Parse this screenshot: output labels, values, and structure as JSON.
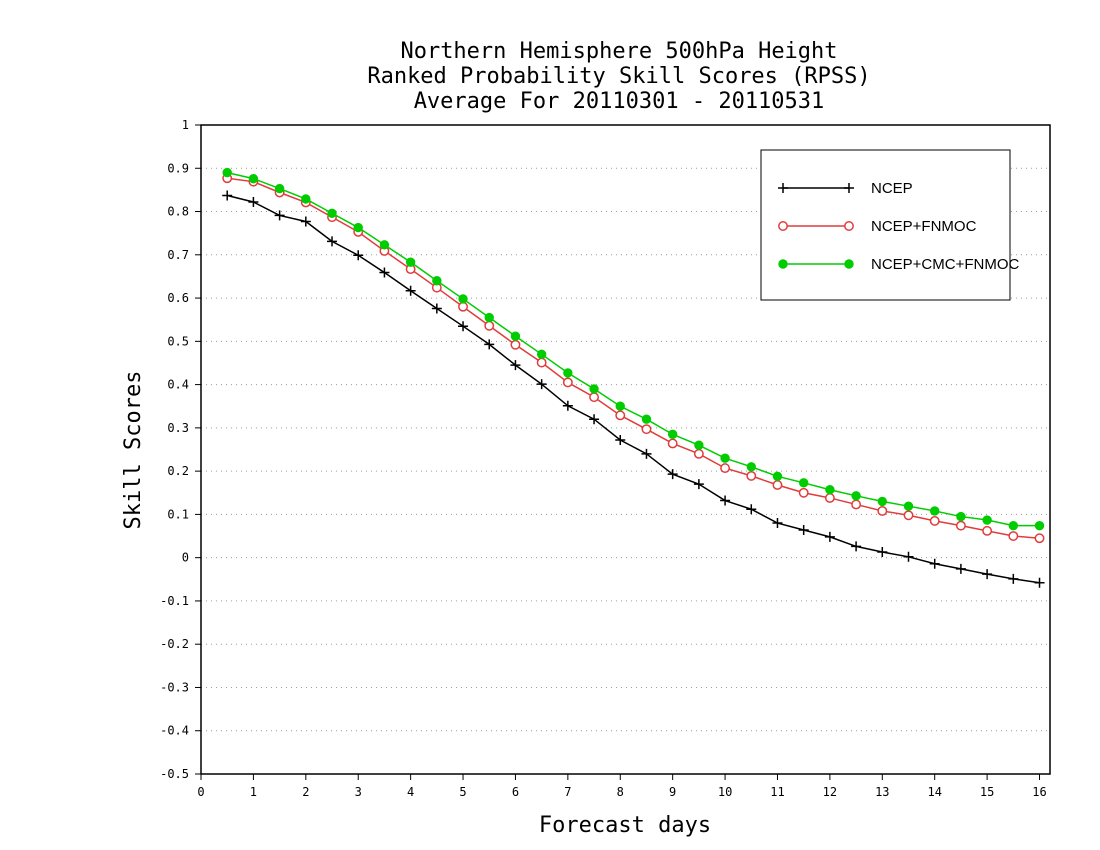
{
  "chart_data": {
    "type": "line",
    "title": [
      "Northern Hemisphere 500hPa Height",
      "Ranked Probability Skill Scores (RPSS)",
      "Average For 20110301 - 20110531"
    ],
    "xlabel": "Forecast days",
    "ylabel": "Skill Scores",
    "xlim": [
      0,
      16.2
    ],
    "ylim": [
      -0.5,
      1
    ],
    "xticks": [
      0,
      1,
      2,
      3,
      4,
      5,
      6,
      7,
      8,
      9,
      10,
      11,
      12,
      13,
      14,
      15,
      16
    ],
    "yticks": [
      -0.5,
      -0.4,
      -0.3,
      -0.2,
      -0.1,
      0,
      0.1,
      0.2,
      0.3,
      0.4,
      0.5,
      0.6,
      0.7,
      0.8,
      0.9,
      1
    ],
    "ytick_labels": [
      "-0.5",
      "-0.4",
      "-0.3",
      "-0.2",
      "-0.1",
      "0",
      "0.1",
      "0.2",
      "0.3",
      "0.4",
      "0.5",
      "0.6",
      "0.7",
      "0.8",
      "0.9",
      "1"
    ],
    "grid": "horizontal dotted",
    "legend_position": "top-right",
    "x": [
      0.5,
      1.0,
      1.5,
      2.0,
      2.5,
      3.0,
      3.5,
      4.0,
      4.5,
      5.0,
      5.5,
      6.0,
      6.5,
      7.0,
      7.5,
      8.0,
      8.5,
      9.0,
      9.5,
      10.0,
      10.5,
      11.0,
      11.5,
      12.0,
      12.5,
      13.0,
      13.5,
      14.0,
      14.5,
      15.0,
      15.5,
      16.0
    ],
    "series": [
      {
        "name": "NCEP",
        "color": "#000000",
        "marker": "plus",
        "values": [
          0.837,
          0.822,
          0.791,
          0.777,
          0.731,
          0.699,
          0.659,
          0.617,
          0.576,
          0.535,
          0.493,
          0.445,
          0.401,
          0.351,
          0.32,
          0.272,
          0.24,
          0.193,
          0.17,
          0.132,
          0.112,
          0.08,
          0.064,
          0.048,
          0.026,
          0.013,
          0.002,
          -0.014,
          -0.026,
          -0.038,
          -0.049,
          -0.058
        ]
      },
      {
        "name": "NCEP+FNMOC",
        "color": "#e03c3c",
        "marker": "open-circle",
        "values": [
          0.877,
          0.869,
          0.844,
          0.821,
          0.787,
          0.753,
          0.709,
          0.667,
          0.624,
          0.58,
          0.536,
          0.492,
          0.451,
          0.405,
          0.371,
          0.329,
          0.297,
          0.264,
          0.24,
          0.207,
          0.189,
          0.168,
          0.15,
          0.138,
          0.123,
          0.108,
          0.098,
          0.085,
          0.074,
          0.062,
          0.05,
          0.045
        ]
      },
      {
        "name": "NCEP+CMC+FNMOC",
        "color": "#00cc00",
        "marker": "filled-circle",
        "values": [
          0.89,
          0.876,
          0.853,
          0.829,
          0.796,
          0.763,
          0.723,
          0.683,
          0.64,
          0.598,
          0.555,
          0.512,
          0.47,
          0.427,
          0.39,
          0.35,
          0.32,
          0.285,
          0.26,
          0.23,
          0.21,
          0.188,
          0.173,
          0.157,
          0.143,
          0.13,
          0.119,
          0.108,
          0.095,
          0.087,
          0.074,
          0.074
        ]
      }
    ]
  }
}
